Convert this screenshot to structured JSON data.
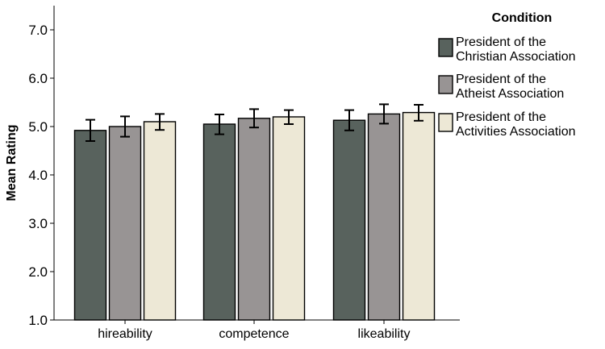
{
  "chart_data": {
    "type": "bar",
    "categories": [
      "hireability",
      "competence",
      "likeability"
    ],
    "ylabel": "Mean Rating",
    "xlabel": "",
    "ylim": [
      1.0,
      7.5
    ],
    "yticks": [
      "1.0",
      "2.0",
      "3.0",
      "4.0",
      "5.0",
      "6.0",
      "7.0"
    ],
    "legend": {
      "title": "Condition",
      "position": "top-right"
    },
    "grid": false,
    "series": [
      {
        "name_lines": [
          "President of the",
          "Christian Association"
        ],
        "color": "#58625d",
        "values": [
          4.92,
          5.05,
          5.13
        ],
        "err_low": [
          4.7,
          4.84,
          4.92
        ],
        "err_high": [
          5.14,
          5.25,
          5.34
        ]
      },
      {
        "name_lines": [
          "President of the",
          "Atheist Association"
        ],
        "color": "#989494",
        "values": [
          5.0,
          5.17,
          5.26
        ],
        "err_low": [
          4.79,
          4.98,
          5.06
        ],
        "err_high": [
          5.21,
          5.36,
          5.46
        ]
      },
      {
        "name_lines": [
          "President of the",
          "Activities Association"
        ],
        "color": "#ede8d6",
        "values": [
          5.1,
          5.2,
          5.29
        ],
        "err_low": [
          4.93,
          5.05,
          5.12
        ],
        "err_high": [
          5.26,
          5.34,
          5.45
        ]
      }
    ]
  }
}
